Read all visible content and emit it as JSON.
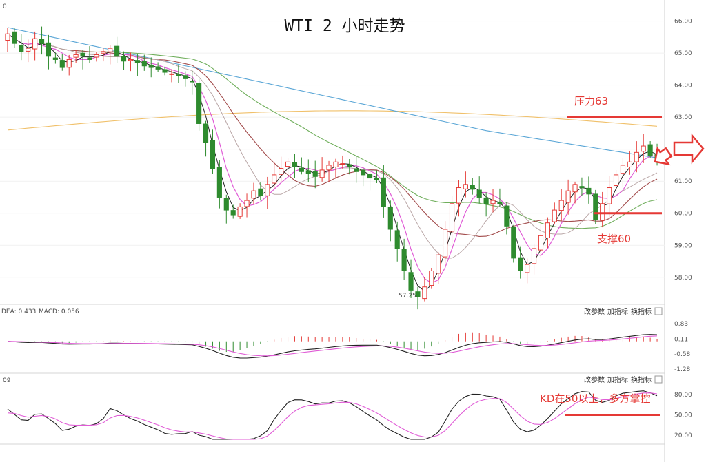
{
  "chart_data": [
    {
      "type": "candlestick",
      "title": "WTI 2 小时走势",
      "corner_label": "0",
      "yticks": [
        "66.00",
        "65.00",
        "64.00",
        "63.00",
        "62.00",
        "61.00",
        "60.00",
        "59.00",
        "58.00"
      ],
      "ylim": [
        57.2,
        66.4
      ],
      "low_label": "57.25",
      "annotations": {
        "resistance": "压力63",
        "support": "支撑60"
      },
      "levels": {
        "resistance": 63,
        "support": 60
      },
      "colors": {
        "up": "#e53935",
        "down": "#2e8b2e",
        "ma5": "#222222",
        "ma10": "#e05bd6",
        "ma20": "#b9a6a6",
        "ma30": "#a24b4b",
        "ma60": "#6fae5b",
        "ma120": "#5aa6d6",
        "ma250": "#f0c06a",
        "annotation": "#e53935"
      },
      "close": [
        65.6,
        65.3,
        65.05,
        65.15,
        65.45,
        65.3,
        64.9,
        64.8,
        64.55,
        64.8,
        64.95,
        64.9,
        64.8,
        64.95,
        65.05,
        65.15,
        64.9,
        64.75,
        64.8,
        64.7,
        64.6,
        64.55,
        64.5,
        64.4,
        64.35,
        64.3,
        64.2,
        64.1,
        62.8,
        62.2,
        61.4,
        60.5,
        60.1,
        59.95,
        60.2,
        60.4,
        60.7,
        60.55,
        60.9,
        61.2,
        61.4,
        61.6,
        61.45,
        61.3,
        61.25,
        61.15,
        61.35,
        61.5,
        61.6,
        61.55,
        61.45,
        61.3,
        61.2,
        61.1,
        61.05,
        60.2,
        59.5,
        58.9,
        58.2,
        57.6,
        57.4,
        57.7,
        58.2,
        58.7,
        59.5,
        60.3,
        60.8,
        60.9,
        60.75,
        60.5,
        60.3,
        60.4,
        60.3,
        59.6,
        58.6,
        58.2,
        58.4,
        58.9,
        59.3,
        59.7,
        60.1,
        60.4,
        60.7,
        60.9,
        60.8,
        60.6,
        59.8,
        60.3,
        60.8,
        61.2,
        61.5,
        61.6,
        61.9,
        62.1,
        61.8,
        61.6
      ],
      "volume_ylim": [
        0,
        1
      ],
      "indicators": [
        {
          "header": "DEA: 0.433",
          "header2": "MACD: 0.056",
          "yticks": [
            "0.83",
            "0.11",
            "-0.58",
            "-1.28"
          ],
          "ylim": [
            -1.35,
            0.95
          ],
          "buttons": [
            "改参数",
            "加指标",
            "换指标"
          ]
        },
        {
          "header": "09",
          "yticks": [
            "80.00",
            "50.00",
            "20.00"
          ],
          "ylim": [
            10,
            95
          ],
          "annotation": "KD在50以上，多方掌控",
          "level": 50,
          "buttons": [
            "改参数",
            "加指标",
            "换指标"
          ]
        }
      ]
    }
  ]
}
